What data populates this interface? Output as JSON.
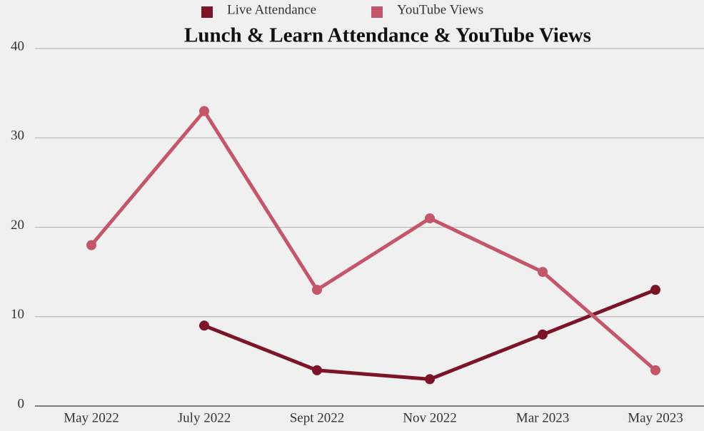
{
  "chart_data": {
    "type": "line",
    "title": "Lunch & Learn Attendance & YouTube Views",
    "categories": [
      "May 2022",
      "July 2022",
      "Sept 2022",
      "Nov 2022",
      "Mar 2023",
      "May 2023"
    ],
    "series": [
      {
        "name": "Live Attendance",
        "color": "#7b1427",
        "values": [
          null,
          9,
          4,
          3,
          8,
          13
        ]
      },
      {
        "name": "YouTube Views",
        "color": "#c4566a",
        "values": [
          18,
          33,
          13,
          21,
          15,
          4
        ]
      }
    ],
    "ylim": [
      0,
      40
    ],
    "yticks": [
      0,
      10,
      20,
      30,
      40
    ],
    "grid": true,
    "legend": "top"
  }
}
